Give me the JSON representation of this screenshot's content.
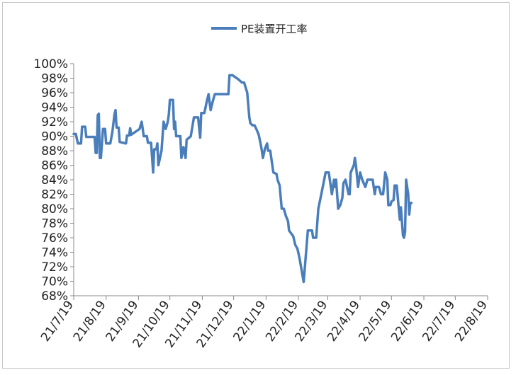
{
  "chart_data": {
    "type": "line",
    "title": "",
    "xlabel": "",
    "ylabel": "",
    "series": [
      {
        "name": "PE装置开工率",
        "color": "#4a7ebb",
        "points": [
          [
            "2021-07-19",
            90.3
          ],
          [
            "2021-07-21",
            90.3
          ],
          [
            "2021-07-23",
            89.0
          ],
          [
            "2021-07-26",
            89.0
          ],
          [
            "2021-07-27",
            91.3
          ],
          [
            "2021-07-30",
            91.3
          ],
          [
            "2021-07-31",
            89.9
          ],
          [
            "2021-08-08",
            89.9
          ],
          [
            "2021-08-09",
            87.7
          ],
          [
            "2021-08-10",
            87.7
          ],
          [
            "2021-08-11",
            92.9
          ],
          [
            "2021-08-12",
            93.1
          ],
          [
            "2021-08-13",
            87.0
          ],
          [
            "2021-08-14",
            87.0
          ],
          [
            "2021-08-16",
            91.0
          ],
          [
            "2021-08-18",
            91.0
          ],
          [
            "2021-08-19",
            89.0
          ],
          [
            "2021-08-23",
            89.0
          ],
          [
            "2021-08-25",
            90.6
          ],
          [
            "2021-08-27",
            93.0
          ],
          [
            "2021-08-28",
            93.6
          ],
          [
            "2021-08-29",
            91.2
          ],
          [
            "2021-08-31",
            91.2
          ],
          [
            "2021-09-01",
            89.2
          ],
          [
            "2021-09-07",
            89.0
          ],
          [
            "2021-09-08",
            90.1
          ],
          [
            "2021-09-10",
            90.1
          ],
          [
            "2021-09-11",
            91.1
          ],
          [
            "2021-09-12",
            90.2
          ],
          [
            "2021-09-20",
            91.0
          ],
          [
            "2021-09-22",
            92.0
          ],
          [
            "2021-09-24",
            90.0
          ],
          [
            "2021-09-27",
            90.0
          ],
          [
            "2021-09-28",
            89.1
          ],
          [
            "2021-10-01",
            89.1
          ],
          [
            "2021-10-03",
            85.0
          ],
          [
            "2021-10-04",
            88.2
          ],
          [
            "2021-10-06",
            88.2
          ],
          [
            "2021-10-07",
            89.0
          ],
          [
            "2021-10-08",
            86.0
          ],
          [
            "2021-10-11",
            88.0
          ],
          [
            "2021-10-13",
            92.0
          ],
          [
            "2021-10-15",
            91.0
          ],
          [
            "2021-10-17",
            92.0
          ],
          [
            "2021-10-18",
            93.0
          ],
          [
            "2021-10-19",
            95.0
          ],
          [
            "2021-10-22",
            95.0
          ],
          [
            "2021-10-23",
            91.0
          ],
          [
            "2021-10-24",
            92.0
          ],
          [
            "2021-10-25",
            90.0
          ],
          [
            "2021-10-29",
            90.0
          ],
          [
            "2021-10-30",
            87.0
          ],
          [
            "2021-11-01",
            88.5
          ],
          [
            "2021-11-03",
            87.0
          ],
          [
            "2021-11-04",
            89.5
          ],
          [
            "2021-11-08",
            90.0
          ],
          [
            "2021-11-11",
            92.6
          ],
          [
            "2021-11-15",
            92.6
          ],
          [
            "2021-11-17",
            89.8
          ],
          [
            "2021-11-18",
            93.2
          ],
          [
            "2021-11-21",
            93.2
          ],
          [
            "2021-11-23",
            94.6
          ],
          [
            "2021-11-25",
            95.8
          ],
          [
            "2021-11-27",
            93.6
          ],
          [
            "2021-11-29",
            94.8
          ],
          [
            "2021-12-01",
            95.8
          ],
          [
            "2021-12-14",
            95.8
          ],
          [
            "2021-12-15",
            98.4
          ],
          [
            "2021-12-18",
            98.4
          ],
          [
            "2021-12-23",
            97.9
          ],
          [
            "2021-12-27",
            97.4
          ],
          [
            "2021-12-29",
            97.4
          ],
          [
            "2022-01-01",
            96.0
          ],
          [
            "2022-01-03",
            92.6
          ],
          [
            "2022-01-04",
            91.8
          ],
          [
            "2022-01-06",
            91.5
          ],
          [
            "2022-01-08",
            91.5
          ],
          [
            "2022-01-10",
            90.9
          ],
          [
            "2022-01-12",
            90.2
          ],
          [
            "2022-01-14",
            88.8
          ],
          [
            "2022-01-15",
            88.0
          ],
          [
            "2022-01-16",
            87.0
          ],
          [
            "2022-01-18",
            88.3
          ],
          [
            "2022-01-20",
            89.0
          ],
          [
            "2022-01-21",
            88.0
          ],
          [
            "2022-01-23",
            88.0
          ],
          [
            "2022-01-26",
            85.0
          ],
          [
            "2022-01-29",
            84.8
          ],
          [
            "2022-01-30",
            84.0
          ],
          [
            "2022-02-01",
            83.2
          ],
          [
            "2022-02-03",
            80.0
          ],
          [
            "2022-02-05",
            80.0
          ],
          [
            "2022-02-07",
            79.0
          ],
          [
            "2022-02-09",
            78.3
          ],
          [
            "2022-02-10",
            77.0
          ],
          [
            "2022-02-14",
            76.2
          ],
          [
            "2022-02-16",
            75.0
          ],
          [
            "2022-02-18",
            74.5
          ],
          [
            "2022-02-20",
            73.2
          ],
          [
            "2022-02-24",
            69.9
          ],
          [
            "2022-02-28",
            77.0
          ],
          [
            "2022-03-04",
            77.0
          ],
          [
            "2022-03-05",
            76.0
          ],
          [
            "2022-03-08",
            76.0
          ],
          [
            "2022-03-10",
            80.0
          ],
          [
            "2022-03-13",
            82.1
          ],
          [
            "2022-03-17",
            85.0
          ],
          [
            "2022-03-20",
            85.0
          ],
          [
            "2022-03-22",
            83.0
          ],
          [
            "2022-03-23",
            82.0
          ],
          [
            "2022-03-25",
            84.0
          ],
          [
            "2022-03-26",
            83.0
          ],
          [
            "2022-03-27",
            84.0
          ],
          [
            "2022-03-29",
            80.0
          ],
          [
            "2022-03-31",
            80.5
          ],
          [
            "2022-04-02",
            81.5
          ],
          [
            "2022-04-03",
            83.5
          ],
          [
            "2022-04-05",
            84.0
          ],
          [
            "2022-04-08",
            82.0
          ],
          [
            "2022-04-09",
            82.0
          ],
          [
            "2022-04-10",
            85.0
          ],
          [
            "2022-04-13",
            86.0
          ],
          [
            "2022-04-14",
            87.0
          ],
          [
            "2022-04-15",
            86.0
          ],
          [
            "2022-04-17",
            83.0
          ],
          [
            "2022-04-19",
            85.0
          ],
          [
            "2022-04-21",
            84.0
          ],
          [
            "2022-04-24",
            83.0
          ],
          [
            "2022-04-26",
            84.0
          ],
          [
            "2022-05-01",
            84.0
          ],
          [
            "2022-05-02",
            83.0
          ],
          [
            "2022-05-03",
            82.0
          ],
          [
            "2022-05-04",
            83.0
          ],
          [
            "2022-05-07",
            83.0
          ],
          [
            "2022-05-09",
            82.0
          ],
          [
            "2022-05-11",
            82.0
          ],
          [
            "2022-05-13",
            85.0
          ],
          [
            "2022-05-15",
            84.0
          ],
          [
            "2022-05-16",
            80.5
          ],
          [
            "2022-05-18",
            80.5
          ],
          [
            "2022-05-19",
            81.0
          ],
          [
            "2022-05-21",
            81.2
          ],
          [
            "2022-05-22",
            83.2
          ],
          [
            "2022-05-24",
            83.2
          ],
          [
            "2022-05-26",
            80.0
          ],
          [
            "2022-05-27",
            78.5
          ],
          [
            "2022-05-28",
            80.2
          ],
          [
            "2022-05-30",
            76.3
          ],
          [
            "2022-05-31",
            76.0
          ],
          [
            "2022-06-01",
            76.8
          ],
          [
            "2022-06-02",
            84.0
          ],
          [
            "2022-06-04",
            82.0
          ],
          [
            "2022-06-05",
            79.2
          ],
          [
            "2022-06-06",
            80.8
          ],
          [
            "2022-06-07",
            80.8
          ]
        ]
      }
    ],
    "x_axis": {
      "type": "date",
      "range": [
        "2021-07-19",
        "2022-08-19"
      ],
      "tick_labels": [
        "21/7/19",
        "21/8/19",
        "21/9/19",
        "21/10/19",
        "21/11/19",
        "21/12/19",
        "22/1/19",
        "22/2/19",
        "22/3/19",
        "22/4/19",
        "22/5/19",
        "22/6/19",
        "22/7/19",
        "22/8/19"
      ]
    },
    "y_axis": {
      "ylim": [
        68,
        100
      ],
      "step": 2,
      "tick_labels": [
        "68%",
        "70%",
        "72%",
        "74%",
        "76%",
        "78%",
        "80%",
        "82%",
        "84%",
        "86%",
        "88%",
        "90%",
        "92%",
        "94%",
        "96%",
        "98%",
        "100%"
      ]
    },
    "grid": false,
    "legend_position": "top"
  }
}
